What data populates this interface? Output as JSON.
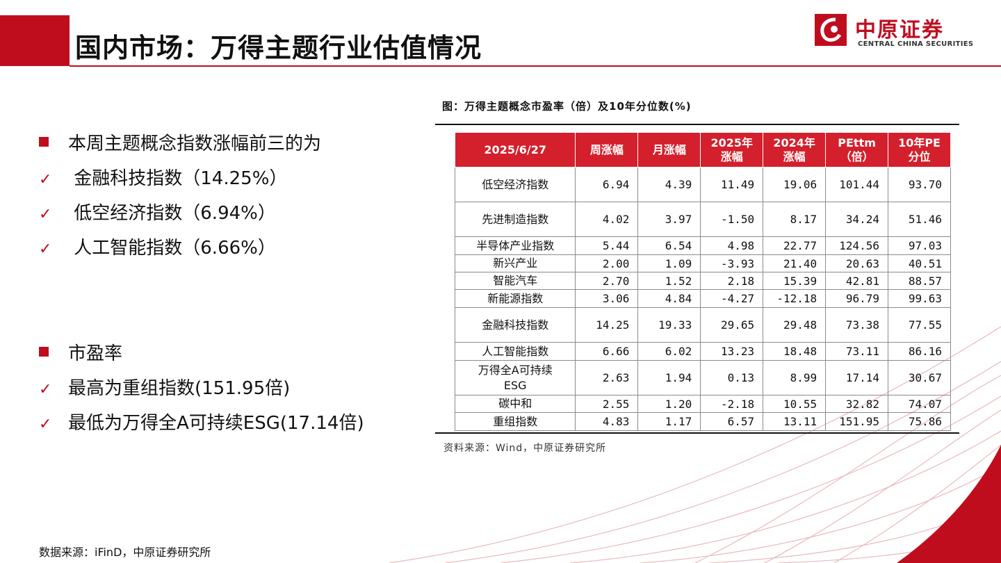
{
  "header": {
    "title": "国内市场：万得主题行业估值情况",
    "logo_cn": "中原证券",
    "logo_en": "CENTRAL CHINA SECURITIES"
  },
  "bullets": [
    {
      "kind": "square",
      "text": "本周主题概念指数涨幅前三的为"
    },
    {
      "kind": "check",
      "text": " 金融科技指数（14.25%）"
    },
    {
      "kind": "check",
      "text": " 低空经济指数（6.94%）"
    },
    {
      "kind": "check",
      "text": " 人工智能指数（6.66%）"
    },
    {
      "kind": "square",
      "text": "市盈率"
    },
    {
      "kind": "check",
      "text": "最高为重组指数(151.95倍)"
    },
    {
      "kind": "check",
      "text": "最低为万得全A可持续ESG(17.14倍)"
    }
  ],
  "figure": {
    "title": "图：万得主题概念市盈率（倍）及10年分位数(%)",
    "source": "资料来源：Wind，中原证券研究所"
  },
  "table": {
    "headers": [
      "2025/6/27",
      "周涨幅",
      "月涨幅",
      "2025年\n涨幅",
      "2024年\n涨幅",
      "PEttm\n（倍）",
      "10年PE\n分位"
    ],
    "rows": [
      [
        "低空经济指数",
        "6.94",
        "4.39",
        "11.49",
        "19.06",
        "101.44",
        "93.70"
      ],
      [
        "先进制造指数",
        "4.02",
        "3.97",
        "-1.50",
        "8.17",
        "34.24",
        "51.46"
      ],
      [
        "半导体产业指数",
        "5.44",
        "6.54",
        "4.98",
        "22.77",
        "124.56",
        "97.03"
      ],
      [
        "新兴产业",
        "2.00",
        "1.09",
        "-3.93",
        "21.40",
        "20.63",
        "40.51"
      ],
      [
        "智能汽车",
        "2.70",
        "1.52",
        "2.18",
        "15.39",
        "42.81",
        "88.57"
      ],
      [
        "新能源指数",
        "3.06",
        "4.84",
        "-4.27",
        "-12.18",
        "96.79",
        "99.63"
      ],
      [
        "金融科技指数",
        "14.25",
        "19.33",
        "29.65",
        "29.48",
        "73.38",
        "77.55"
      ],
      [
        "人工智能指数",
        "6.66",
        "6.02",
        "13.23",
        "18.48",
        "73.11",
        "86.16"
      ],
      [
        "万得全A可持续ESG",
        "2.63",
        "1.94",
        "0.13",
        "8.99",
        "17.14",
        "30.67"
      ],
      [
        "碳中和",
        "2.55",
        "1.20",
        "-2.18",
        "10.55",
        "32.82",
        "74.07"
      ],
      [
        "重组指数",
        "4.83",
        "1.17",
        "6.57",
        "13.11",
        "151.95",
        "75.86"
      ]
    ]
  },
  "footer": {
    "source": "数据来源：iFinD，中原证券研究所"
  },
  "colors": {
    "brand_red": "#c00d1e",
    "header_red": "#d4202c",
    "deco_line": "#e9b8bd"
  }
}
